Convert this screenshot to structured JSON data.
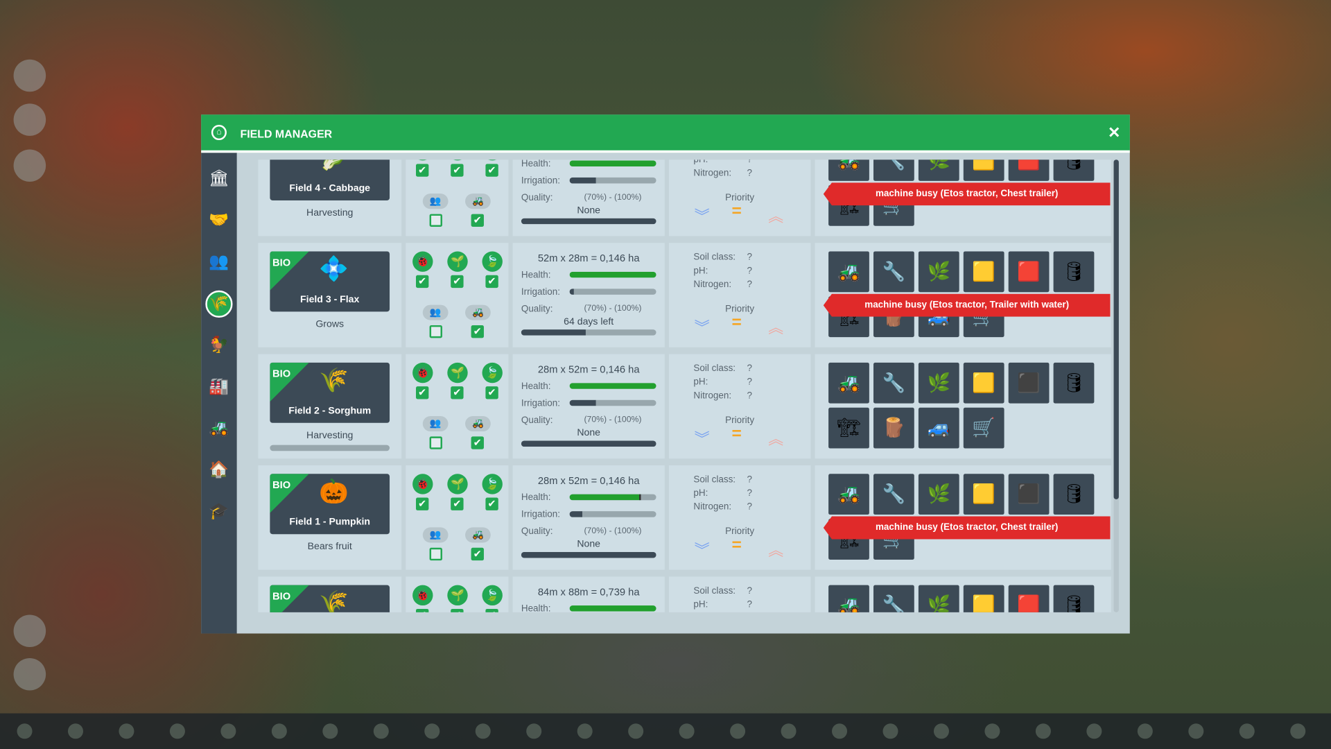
{
  "window": {
    "title": "FIELD MANAGER",
    "close_icon": "close-icon",
    "accent": "#22a852"
  },
  "sidebar": {
    "items": [
      {
        "name": "bank",
        "icon": "🏛"
      },
      {
        "name": "handshake",
        "icon": "🤝"
      },
      {
        "name": "workers",
        "icon": "👥"
      },
      {
        "name": "fields",
        "icon": "🌾",
        "active": true
      },
      {
        "name": "animals",
        "icon": "🐓"
      },
      {
        "name": "factory",
        "icon": "🏭"
      },
      {
        "name": "vehicles",
        "icon": "🚜"
      },
      {
        "name": "buildings",
        "icon": "🏠"
      },
      {
        "name": "education",
        "icon": "🎓"
      }
    ]
  },
  "labels": {
    "health": "Health:",
    "irrigation": "Irrigation:",
    "quality": "Quality:",
    "quality_range": "(70%) - (100%)",
    "soil_class": "Soil class:",
    "ph": "pH:",
    "nitrogen": "Nitrogen:",
    "unknown": "?",
    "priority": "Priority",
    "bio": "BIO"
  },
  "fields": [
    {
      "name": "Field 4 - Cabbage",
      "crop_icon": "🥬",
      "bio": false,
      "status": "Harvesting",
      "size": "",
      "health": 100,
      "irrigation": 30,
      "progress_text": "None",
      "progress": 100,
      "status_bar": null,
      "machines_row1": [
        "🚜",
        "🔧",
        "🌿",
        "🟨",
        "🟥",
        "🛢"
      ],
      "machines_row2": [
        "🏗",
        "🛒"
      ],
      "busy": "machine busy (Etos tractor, Chest trailer)"
    },
    {
      "name": "Field 3 - Flax",
      "crop_icon": "💠",
      "bio": true,
      "status": "Grows",
      "size": "52m x 28m = 0,146 ha",
      "health": 100,
      "irrigation": 5,
      "progress_text": "64 days left",
      "progress": 48,
      "status_bar": null,
      "machines_row1": [
        "🚜",
        "🔧",
        "🌿",
        "🟨",
        "🟥",
        "🛢"
      ],
      "machines_row2": [
        "🏗",
        "🪵",
        "🚙",
        "🛒"
      ],
      "busy": "machine busy (Etos tractor, Trailer with water)"
    },
    {
      "name": "Field 2 - Sorghum",
      "crop_icon": "🌾",
      "bio": true,
      "status": "Harvesting",
      "size": "28m x 52m = 0,146 ha",
      "health": 100,
      "irrigation": 30,
      "progress_text": "None",
      "progress": 100,
      "status_bar": 0,
      "machines_row1": [
        "🚜",
        "🔧",
        "🌿",
        "🟨",
        "⬛",
        "🛢"
      ],
      "machines_row2": [
        "🏗",
        "🪵",
        "🚙",
        "🛒"
      ],
      "busy": ""
    },
    {
      "name": "Field 1 - Pumpkin",
      "crop_icon": "🎃",
      "bio": true,
      "status": "Bears fruit",
      "size": "28m x 52m = 0,146 ha",
      "health": 80,
      "irrigation": 15,
      "progress_text": "None",
      "progress": 100,
      "status_bar": null,
      "machines_row1": [
        "🚜",
        "🔧",
        "🌿",
        "🟨",
        "⬛",
        "🛢"
      ],
      "machines_row2": [
        "🏗",
        "🛒"
      ],
      "busy": "machine busy (Etos tractor, Chest trailer)"
    },
    {
      "name": "",
      "crop_icon": "🌾",
      "bio": true,
      "status": "",
      "size": "84m x 88m = 0,739 ha",
      "health": 100,
      "irrigation": 0,
      "progress_text": "",
      "progress": 0,
      "status_bar": null,
      "machines_row1": [
        "🚜",
        "🔧",
        "🌿",
        "🟨",
        "🟥",
        "🛢"
      ],
      "machines_row2": [],
      "busy": ""
    }
  ]
}
